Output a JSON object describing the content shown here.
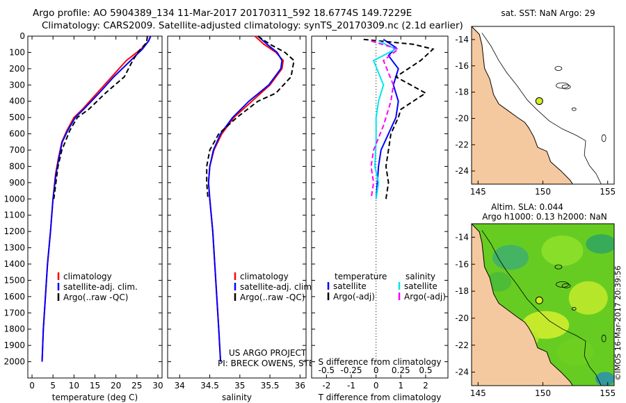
{
  "header": {
    "line1": "Argo profile: AO 5904389_134 11-Mar-2017 20170311_592 18.6774S 149.7229E",
    "line2": "Climatology: CARS2009. Satellite-adjusted climatology: synTS_20170309.nc (2.1d earlier)"
  },
  "timestamp": "©IMOS 16-Mar-2017 20:39:56",
  "colors": {
    "climatology": "#ff0000",
    "satellite": "#0000ff",
    "argo": "#000000",
    "sat_salinity": "#00e5ee",
    "argo_salinity": "#ff00ff",
    "land": "#f5c99f"
  },
  "chart_data": [
    {
      "type": "line",
      "id": "temperature",
      "xlabel": "temperature (deg C)",
      "ylabel": "",
      "xlim": [
        -1,
        31
      ],
      "ylim": [
        0,
        2100
      ],
      "xticks": [
        "0",
        "5",
        "10",
        "15",
        "20",
        "25",
        "30"
      ],
      "yticks": [
        "0",
        "100",
        "200",
        "300",
        "400",
        "500",
        "600",
        "700",
        "800",
        "900",
        "1000",
        "1100",
        "1200",
        "1300",
        "1400",
        "1500",
        "1600",
        "1700",
        "1800",
        "1900",
        "2000"
      ],
      "legend": [
        "climatology",
        "satellite-adj. clim.",
        "Argo(..raw -QC)"
      ],
      "series": [
        {
          "name": "climatology",
          "style": "solid",
          "x": [
            28.2,
            27.8,
            26,
            22.5,
            19,
            15.5,
            12,
            10,
            8.3,
            7.1,
            6.3,
            5.6,
            5,
            4.4,
            3.7,
            3.2,
            2.7,
            2.4
          ],
          "y": [
            0,
            30,
            80,
            150,
            250,
            350,
            450,
            500,
            580,
            650,
            750,
            850,
            1000,
            1200,
            1400,
            1600,
            1800,
            2000
          ]
        },
        {
          "name": "satellite-adj. clim.",
          "style": "solid",
          "x": [
            28.3,
            27.8,
            26.3,
            23.5,
            19.5,
            16,
            12.3,
            10.3,
            8.5,
            7.2,
            6.4,
            5.7,
            5,
            4.4,
            3.7,
            3.2,
            2.7,
            2.4
          ],
          "y": [
            0,
            30,
            80,
            150,
            250,
            350,
            450,
            500,
            580,
            650,
            750,
            850,
            1000,
            1200,
            1400,
            1600,
            1800,
            2000
          ]
        },
        {
          "name": "Argo(..raw -QC)",
          "style": "dashed",
          "x": [
            27.5,
            27.3,
            25.5,
            24,
            22,
            17.5,
            13.5,
            10.8,
            9,
            7.9,
            7.1,
            6.2,
            5.7,
            5.2
          ],
          "y": [
            0,
            40,
            90,
            150,
            250,
            350,
            450,
            500,
            580,
            650,
            700,
            800,
            900,
            1000
          ]
        }
      ]
    },
    {
      "type": "line",
      "id": "salinity",
      "xlabel": "salinity",
      "ylabel": "",
      "xlim": [
        33.8,
        36.1
      ],
      "ylim": [
        0,
        2100
      ],
      "xticks": [
        "34",
        "34.5",
        "35",
        "35.5",
        "36"
      ],
      "legend": [
        "climatology",
        "satellite-adj. clim.",
        "Argo(..raw -QC)"
      ],
      "annotations": [
        "US ARGO PROJECT",
        "PI: BRECK OWENS, STEVE JAYNE, P.E. ROBBINS"
      ],
      "series": [
        {
          "name": "climatology",
          "style": "solid",
          "x": [
            35.25,
            35.4,
            35.6,
            35.72,
            35.7,
            35.5,
            35.2,
            34.9,
            34.7,
            34.57,
            34.5,
            34.48,
            34.5,
            34.55,
            34.6,
            34.65,
            34.68
          ],
          "y": [
            0,
            50,
            100,
            150,
            200,
            300,
            400,
            500,
            600,
            700,
            800,
            900,
            1000,
            1200,
            1500,
            1800,
            2000
          ]
        },
        {
          "name": "satellite-adj. clim.",
          "style": "solid",
          "x": [
            35.3,
            35.45,
            35.62,
            35.7,
            35.68,
            35.48,
            35.15,
            34.88,
            34.68,
            34.56,
            34.5,
            34.48,
            34.5,
            34.55,
            34.6,
            34.65,
            34.68
          ],
          "y": [
            0,
            50,
            100,
            150,
            200,
            300,
            400,
            500,
            600,
            700,
            800,
            900,
            1000,
            1200,
            1500,
            1800,
            2000
          ]
        },
        {
          "name": "Argo(..raw -QC)",
          "style": "dashed",
          "x": [
            35.3,
            35.5,
            35.75,
            35.9,
            35.85,
            35.6,
            35.3,
            34.95,
            34.65,
            34.5,
            34.45,
            34.45,
            34.47
          ],
          "y": [
            0,
            50,
            100,
            150,
            250,
            350,
            400,
            500,
            600,
            700,
            800,
            900,
            1000
          ]
        }
      ]
    },
    {
      "type": "line",
      "id": "differences",
      "xlabel": "T difference from climatology",
      "xlabel2": "S difference from climatology",
      "xlim": [
        -2.6,
        2.9
      ],
      "ylim": [
        0,
        2100
      ],
      "xticks": [
        "-2",
        "-1",
        "0",
        "1",
        "2"
      ],
      "xticks2": [
        "-0.5",
        "-0.25",
        "0",
        "0.25",
        "0.5"
      ],
      "legend_headers": [
        "temperature",
        "salinity"
      ],
      "legend": [
        "satellite",
        "Argo(-adj)",
        "satellite",
        "Argo(-adj)"
      ],
      "series": [
        {
          "name": "temperature satellite",
          "style": "solid",
          "x": [
            0.3,
            0.8,
            0.5,
            0.9,
            0.7,
            0.9,
            0.8,
            0.5,
            0.2,
            0.1,
            0
          ],
          "y": [
            20,
            70,
            120,
            200,
            300,
            400,
            500,
            600,
            700,
            800,
            1000
          ]
        },
        {
          "name": "temperature Argo(-adj)",
          "style": "dashed",
          "x": [
            -0.5,
            1.5,
            2.3,
            1.8,
            0.8,
            2,
            1,
            0.9,
            0.6,
            0.5,
            0.4,
            0.5,
            0.4
          ],
          "y": [
            20,
            50,
            80,
            150,
            250,
            350,
            450,
            500,
            600,
            700,
            800,
            900,
            1000
          ]
        },
        {
          "name": "salinity satellite",
          "style": "solid",
          "x": [
            0.1,
            0.8,
            -0.1,
            0.3,
            0.1,
            0,
            0,
            -0.05,
            0.1,
            0
          ],
          "y": [
            30,
            80,
            150,
            300,
            400,
            500,
            650,
            800,
            900,
            1000
          ]
        },
        {
          "name": "salinity Argo(-adj)",
          "style": "dashed",
          "x": [
            -0.2,
            0.9,
            0.3,
            0.7,
            0.6,
            0.3,
            -0.1,
            -0.2,
            -0.1,
            -0.2
          ],
          "y": [
            30,
            80,
            150,
            300,
            400,
            550,
            700,
            800,
            900,
            1000
          ]
        }
      ]
    },
    {
      "type": "map",
      "id": "sst-map",
      "title": "sat. SST: NaN Argo: 29",
      "xlim": [
        144.5,
        155.5
      ],
      "ylim": [
        -25,
        -13
      ],
      "xticks": [
        "145",
        "150",
        "155"
      ],
      "yticks": [
        "-14",
        "-16",
        "-18",
        "-20",
        "-22",
        "-24"
      ],
      "argo_position": {
        "lon": 149.72,
        "lat": -18.68
      }
    },
    {
      "type": "map",
      "id": "sla-map",
      "title": "Altim. SLA: 0.044",
      "subtitle": "Argo h1000: 0.13 h2000: NaN",
      "xlim": [
        144.5,
        155.5
      ],
      "ylim": [
        -25,
        -13
      ],
      "xticks": [
        "145",
        "150",
        "155"
      ],
      "yticks": [
        "-14",
        "-16",
        "-18",
        "-20",
        "-22",
        "-24"
      ],
      "argo_position": {
        "lon": 149.72,
        "lat": -18.68
      }
    }
  ]
}
